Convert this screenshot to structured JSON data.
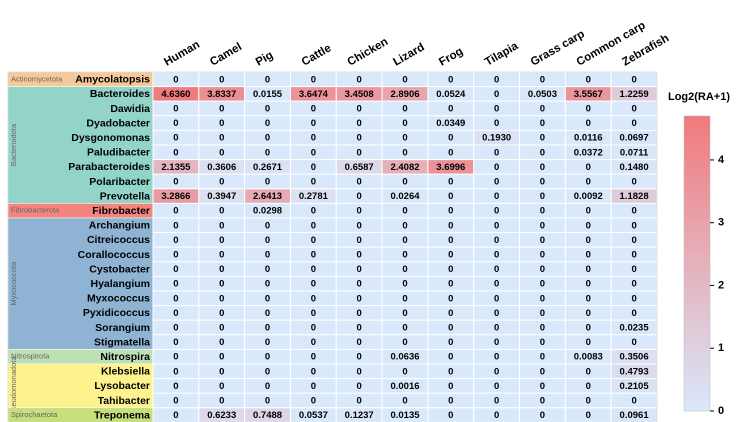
{
  "chart_data": {
    "type": "heatmap",
    "columns": [
      "Human",
      "Camel",
      "Pig",
      "Cattle",
      "Chicken",
      "Lizard",
      "Frog",
      "Tilapia",
      "Grass carp",
      "Common carp",
      "Zebrafish"
    ],
    "rows": [
      "Amycolatopsis",
      "Bacteroides",
      "Dawidia",
      "Dyadobacter",
      "Dysgonomonas",
      "Paludibacter",
      "Parabacteroides",
      "Polaribacter",
      "Prevotella",
      "Fibrobacter",
      "Archangium",
      "Citreicoccus",
      "Corallococcus",
      "Cystobacter",
      "Hyalangium",
      "Myxococcus",
      "Pyxidicoccus",
      "Sorangium",
      "Stigmatella",
      "Nitrospira",
      "Klebsiella",
      "Lysobacter",
      "Tahibacter",
      "Treponema"
    ],
    "values": [
      [
        "0",
        "0",
        "0",
        "0",
        "0",
        "0",
        "0",
        "0",
        "0",
        "0",
        "0"
      ],
      [
        "4.6360",
        "3.8337",
        "0.0155",
        "3.6474",
        "3.4508",
        "2.8906",
        "0.0524",
        "0",
        "0.0503",
        "3.5567",
        "1.2259"
      ],
      [
        "0",
        "0",
        "0",
        "0",
        "0",
        "0",
        "0",
        "0",
        "0",
        "0",
        "0"
      ],
      [
        "0",
        "0",
        "0",
        "0",
        "0",
        "0",
        "0.0349",
        "0",
        "0",
        "0",
        "0"
      ],
      [
        "0",
        "0",
        "0",
        "0",
        "0",
        "0",
        "0",
        "0.1930",
        "0",
        "0.0116",
        "0.0697"
      ],
      [
        "0",
        "0",
        "0",
        "0",
        "0",
        "0",
        "0",
        "0",
        "0",
        "0.0372",
        "0.0711"
      ],
      [
        "2.1355",
        "0.3606",
        "0.2671",
        "0",
        "0.6587",
        "2.4082",
        "3.6996",
        "0",
        "0",
        "0",
        "0.1480"
      ],
      [
        "0",
        "0",
        "0",
        "0",
        "0",
        "0",
        "0",
        "0",
        "0",
        "0",
        "0"
      ],
      [
        "3.2866",
        "0.3947",
        "2.6413",
        "0.2781",
        "0",
        "0.0264",
        "0",
        "0",
        "0",
        "0.0092",
        "1.1828"
      ],
      [
        "0",
        "0",
        "0.0298",
        "0",
        "0",
        "0",
        "0",
        "0",
        "0",
        "0",
        "0"
      ],
      [
        "0",
        "0",
        "0",
        "0",
        "0",
        "0",
        "0",
        "0",
        "0",
        "0",
        "0"
      ],
      [
        "0",
        "0",
        "0",
        "0",
        "0",
        "0",
        "0",
        "0",
        "0",
        "0",
        "0"
      ],
      [
        "0",
        "0",
        "0",
        "0",
        "0",
        "0",
        "0",
        "0",
        "0",
        "0",
        "0"
      ],
      [
        "0",
        "0",
        "0",
        "0",
        "0",
        "0",
        "0",
        "0",
        "0",
        "0",
        "0"
      ],
      [
        "0",
        "0",
        "0",
        "0",
        "0",
        "0",
        "0",
        "0",
        "0",
        "0",
        "0"
      ],
      [
        "0",
        "0",
        "0",
        "0",
        "0",
        "0",
        "0",
        "0",
        "0",
        "0",
        "0"
      ],
      [
        "0",
        "0",
        "0",
        "0",
        "0",
        "0",
        "0",
        "0",
        "0",
        "0",
        "0"
      ],
      [
        "0",
        "0",
        "0",
        "0",
        "0",
        "0",
        "0",
        "0",
        "0",
        "0",
        "0.0235"
      ],
      [
        "0",
        "0",
        "0",
        "0",
        "0",
        "0",
        "0",
        "0",
        "0",
        "0",
        "0"
      ],
      [
        "0",
        "0",
        "0",
        "0",
        "0",
        "0.0636",
        "0",
        "0",
        "0",
        "0.0083",
        "0.3506"
      ],
      [
        "0",
        "0",
        "0",
        "0",
        "0",
        "0",
        "0",
        "0",
        "0",
        "0",
        "0.4793"
      ],
      [
        "0",
        "0",
        "0",
        "0",
        "0",
        "0.0016",
        "0",
        "0",
        "0",
        "0",
        "0.2105"
      ],
      [
        "0",
        "0",
        "0",
        "0",
        "0",
        "0",
        "0",
        "0",
        "0",
        "0",
        "0"
      ],
      [
        "0",
        "0.6233",
        "0.7488",
        "0.0537",
        "0.1237",
        "0.0135",
        "0",
        "0",
        "0",
        "0",
        "0.0961"
      ]
    ],
    "phyla": [
      {
        "name": "Actinomycetota",
        "rows": [
          "Amycolatopsis"
        ],
        "color": "#f6c99a"
      },
      {
        "name": "Bacteroidota",
        "rows": [
          "Bacteroides",
          "Dawidia",
          "Dyadobacter",
          "Dysgonomonas",
          "Paludibacter",
          "Parabacteroides",
          "Polaribacter",
          "Prevotella"
        ],
        "color": "#92d4c8"
      },
      {
        "name": "Fibrobacterota",
        "rows": [
          "Fibrobacter"
        ],
        "color": "#f2867f"
      },
      {
        "name": "Myxococcota",
        "rows": [
          "Archangium",
          "Citreicoccus",
          "Corallococcus",
          "Cystobacter",
          "Hyalangium",
          "Myxococcus",
          "Pyxidicoccus",
          "Sorangium",
          "Stigmatella"
        ],
        "color": "#8fb4d3"
      },
      {
        "name": "Nitrospirota",
        "rows": [
          "Nitrospira"
        ],
        "color": "#bfe0b3"
      },
      {
        "name": "Pseudomonadota",
        "rows": [
          "Klebsiella",
          "Lysobacter",
          "Tahibacter"
        ],
        "color": "#fdf28e"
      },
      {
        "name": "Spirochaetota",
        "rows": [
          "Treponema"
        ],
        "color": "#c6de7c"
      }
    ],
    "colorbar": {
      "title": "Log2(RA+1)",
      "range": [
        0,
        4.7
      ],
      "ticks": [
        0,
        1,
        2,
        3,
        4
      ],
      "low_color": "#d9e8fb",
      "high_color": "#f07a7c"
    }
  }
}
